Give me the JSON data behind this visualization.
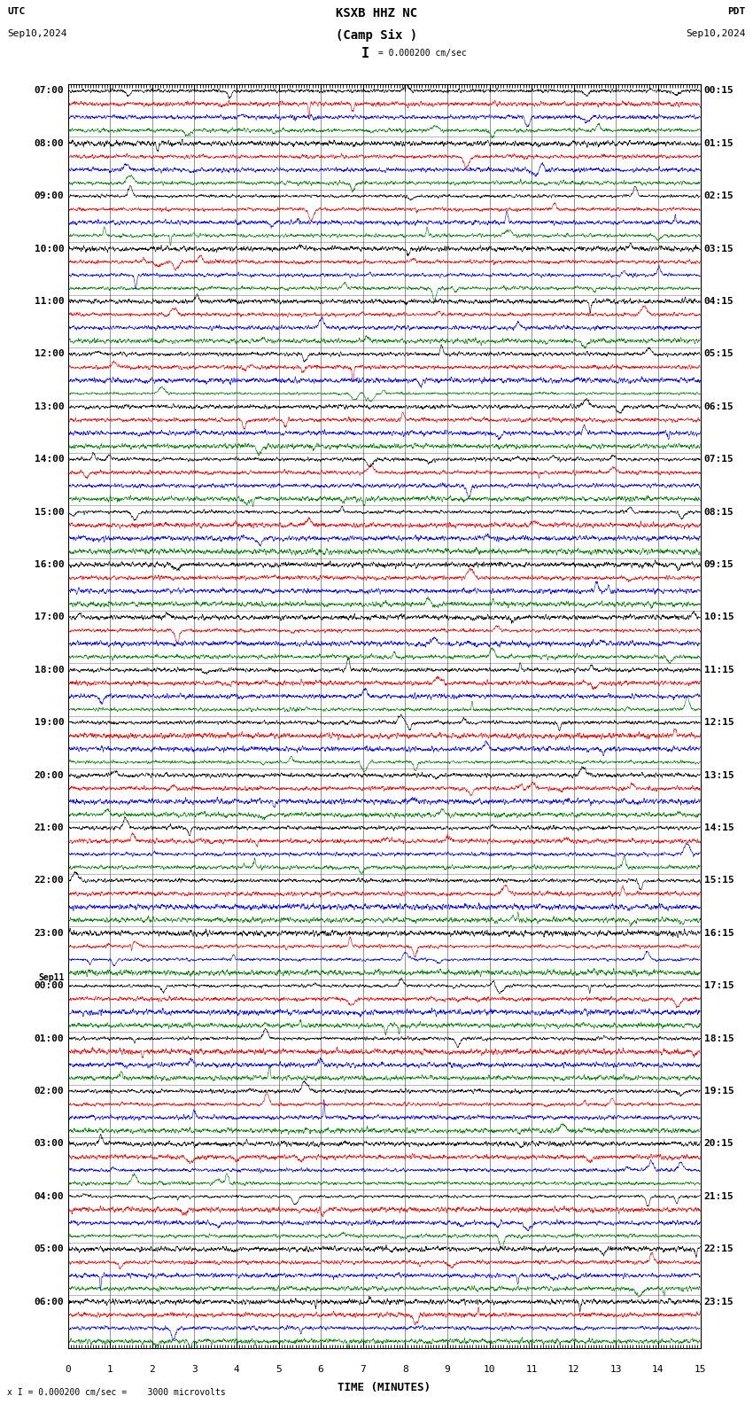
{
  "title_line1": "KSXB HHZ NC",
  "title_line2": "(Camp Six )",
  "scale_label": "I = 0.000200 cm/sec",
  "utc_label": "UTC",
  "utc_date": "Sep10,2024",
  "pdt_label": "PDT",
  "pdt_date": "Sep10,2024",
  "bottom_label": "x I = 0.000200 cm/sec =    3000 microvolts",
  "xlabel": "TIME (MINUTES)",
  "left_times": [
    "07:00",
    "08:00",
    "09:00",
    "10:00",
    "11:00",
    "12:00",
    "13:00",
    "14:00",
    "15:00",
    "16:00",
    "17:00",
    "18:00",
    "19:00",
    "20:00",
    "21:00",
    "22:00",
    "23:00",
    "00:00",
    "01:00",
    "02:00",
    "03:00",
    "04:00",
    "05:00",
    "06:00"
  ],
  "right_times": [
    "00:15",
    "01:15",
    "02:15",
    "03:15",
    "04:15",
    "05:15",
    "06:15",
    "07:15",
    "08:15",
    "09:15",
    "10:15",
    "11:15",
    "12:15",
    "13:15",
    "14:15",
    "15:15",
    "16:15",
    "17:15",
    "18:15",
    "19:15",
    "20:15",
    "21:15",
    "22:15",
    "23:15"
  ],
  "sep11_row": 17,
  "n_rows": 24,
  "n_traces_per_row": 4,
  "trace_colors": [
    "black",
    "red",
    "blue",
    "green"
  ],
  "bg_color": "white",
  "minutes": 15,
  "fontsize_title": 9,
  "fontsize_labels": 8,
  "fontsize_times": 8
}
